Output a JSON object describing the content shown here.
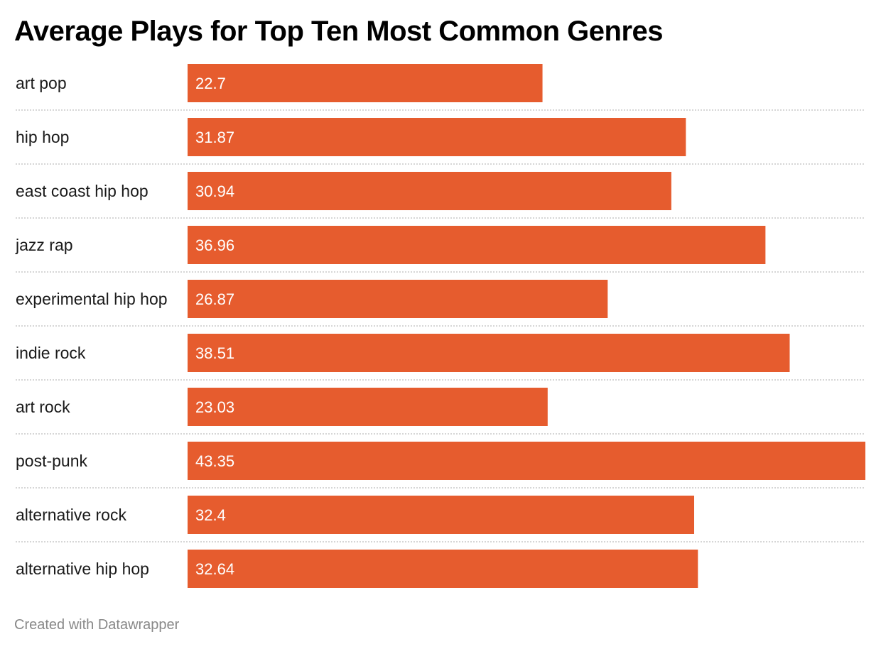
{
  "chart_data": {
    "type": "bar",
    "orientation": "horizontal",
    "title": "Average Plays for Top Ten Most Common Genres",
    "categories": [
      "art pop",
      "hip hop",
      "east coast hip hop",
      "jazz rap",
      "experimental hip hop",
      "indie rock",
      "art rock",
      "post-punk",
      "alternative rock",
      "alternative hip hop"
    ],
    "values": [
      22.7,
      31.87,
      30.94,
      36.96,
      26.87,
      38.51,
      23.03,
      43.35,
      32.4,
      32.64
    ],
    "value_labels": [
      "22.7",
      "31.87",
      "30.94",
      "36.96",
      "26.87",
      "38.51",
      "23.03",
      "43.35",
      "32.4",
      "32.64"
    ],
    "xlim": [
      0,
      43.35
    ],
    "bar_color": "#e65c2e",
    "label_color": "#ffffff",
    "gridlines": "dotted row separators",
    "legend": "none"
  },
  "footer": {
    "credit": "Created with Datawrapper"
  }
}
